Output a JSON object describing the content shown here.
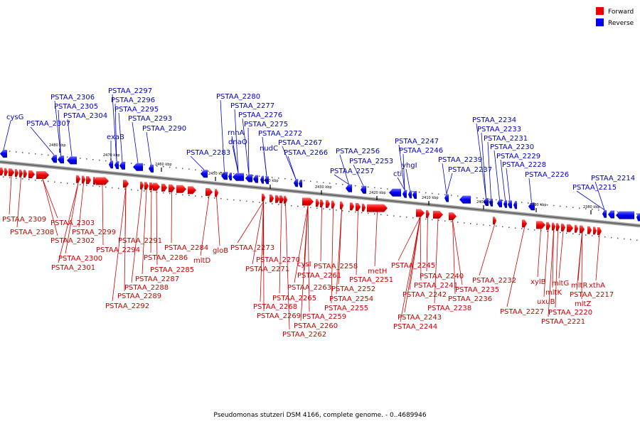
{
  "caption": "Pseudomonas stutzeri DSM 4166, complete genome. - 0..4689946",
  "legend": [
    {
      "label": "Forward",
      "color": "#ee0000"
    },
    {
      "label": "Reverse",
      "color": "#0000ee"
    }
  ],
  "colors": {
    "forward": "#ee0000",
    "reverse": "#0000ee",
    "backbone": "#777777"
  },
  "ticks": [
    "2480 kbp",
    "2470 kbp",
    "2460 kbp",
    "2450 kbp",
    "2440 kbp",
    "2430 kbp",
    "2420 kbp",
    "2410 kbp",
    "2400 kbp",
    "2390 kbp",
    "2380 kbp"
  ],
  "reverse_labels": [
    "cysG",
    "PSTAA_2307",
    "PSTAA_2306",
    "PSTAA_2305",
    "PSTAA_2304",
    "exaB",
    "PSTAA_2297",
    "PSTAA_2296",
    "PSTAA_2295",
    "PSTAA_2293",
    "PSTAA_2290",
    "PSTAA_2283",
    "PSTAA_2280",
    "PSTAA_2277",
    "rnhA",
    "dnaQ",
    "PSTAA_2276",
    "PSTAA_2275",
    "nudC",
    "PSTAA_2272",
    "PSTAA_2267",
    "PSTAA_2266",
    "PSTAA_2256",
    "PSTAA_2257",
    "PSTAA_2253",
    "cti",
    "yhgI",
    "PSTAA_2247",
    "PSTAA_2246",
    "PSTAA_2239",
    "PSTAA_2237",
    "PSTAA_2234",
    "PSTAA_2233",
    "PSTAA_2231",
    "PSTAA_2230",
    "PSTAA_2229",
    "PSTAA_2228",
    "PSTAA_2226",
    "PSTAA_2215",
    "PSTAA_2214"
  ],
  "forward_labels": [
    "PSTAA_2309",
    "PSTAA_2308",
    "PSTAA_2303",
    "PSTAA_2302",
    "PSTAA_2299",
    "PSTAA_2300",
    "PSTAA_2301",
    "PSTAA_2294",
    "PSTAA_2291",
    "PSTAA_2286",
    "PSTAA_2285",
    "PSTAA_2287",
    "PSTAA_2288",
    "PSTAA_2289",
    "PSTAA_2292",
    "PSTAA_2284",
    "mltD",
    "gloB",
    "PSTAA_2273",
    "PSTAA_2270",
    "PSTAA_2271",
    "cysI",
    "PSTAA_2261",
    "PSTAA_2258",
    "PSTAA_2263",
    "PSTAA_2265",
    "PSTAA_2268",
    "PSTAA_2269",
    "PSTAA_2259",
    "PSTAA_2260",
    "PSTAA_2262",
    "PSTAA_2252",
    "PSTAA_2254",
    "PSTAA_2255",
    "PSTAA_2251",
    "metH",
    "PSTAA_2245",
    "PSTAA_2240",
    "PSTAA_2241",
    "PSTAA_2242",
    "PSTAA_2243",
    "PSTAA_2244",
    "PSTAA_2238",
    "PSTAA_2236",
    "PSTAA_2235",
    "PSTAA_2232",
    "PSTAA_2227",
    "xylB",
    "mltK",
    "uxuB",
    "mltG",
    "mltR",
    "xthA",
    "PSTAA_2217",
    "mltZ",
    "PSTAA_2220",
    "PSTAA_2221"
  ]
}
